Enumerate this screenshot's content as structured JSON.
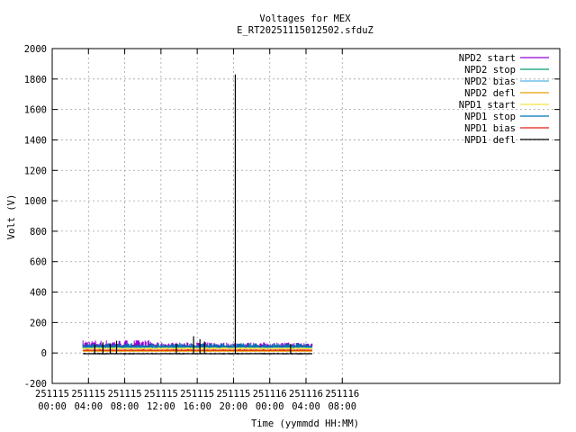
{
  "chart_data": {
    "type": "line",
    "title": "Voltages for MEX",
    "subtitle": "E_RT20251115012502.sfduZ",
    "xlabel": "Time (yymmdd HH:MM)",
    "ylabel": "Volt (V)",
    "xlim_hours": [
      0,
      56
    ],
    "ylim": [
      -200,
      2000
    ],
    "grid": true,
    "legend_position": "top-right",
    "x_ticks": [
      {
        "hours": 0,
        "date": "251115",
        "time": "00:00"
      },
      {
        "hours": 4,
        "date": "251115",
        "time": "04:00"
      },
      {
        "hours": 8,
        "date": "251115",
        "time": "08:00"
      },
      {
        "hours": 12,
        "date": "251115",
        "time": "12:00"
      },
      {
        "hours": 16,
        "date": "251115",
        "time": "16:00"
      },
      {
        "hours": 20,
        "date": "251115",
        "time": "20:00"
      },
      {
        "hours": 24,
        "date": "251116",
        "time": "00:00"
      },
      {
        "hours": 28,
        "date": "251116",
        "time": "04:00"
      },
      {
        "hours": 32,
        "date": "251116",
        "time": "08:00"
      }
    ],
    "y_ticks": [
      -200,
      0,
      200,
      400,
      600,
      800,
      1000,
      1200,
      1400,
      1600,
      1800,
      2000
    ],
    "series": [
      {
        "name": "NPD2 start",
        "color": "#9400d3",
        "segments": [
          {
            "from_hours": 3.4,
            "to_hours": 11.0,
            "base": 45,
            "band": [
              40,
              85
            ]
          },
          {
            "from_hours": 11.0,
            "to_hours": 28.7,
            "base": 45,
            "band": [
              40,
              70
            ]
          }
        ]
      },
      {
        "name": "NPD2 stop",
        "color": "#009e73",
        "segments": [
          {
            "from_hours": 3.4,
            "to_hours": 28.7,
            "base": 35,
            "band": [
              30,
              55
            ]
          }
        ]
      },
      {
        "name": "NPD2 bias",
        "color": "#56b4e9",
        "segments": [
          {
            "from_hours": 3.4,
            "to_hours": 28.7,
            "base": 30,
            "band": [
              25,
              50
            ]
          }
        ]
      },
      {
        "name": "NPD2 defl",
        "color": "#e69f00",
        "segments": [
          {
            "from_hours": 3.4,
            "to_hours": 28.7,
            "base": 12,
            "band": [
              8,
              18
            ]
          }
        ]
      },
      {
        "name": "NPD1 start",
        "color": "#f0e442",
        "segments": [
          {
            "from_hours": 3.4,
            "to_hours": 28.7,
            "base": 28,
            "band": [
              25,
              40
            ]
          }
        ]
      },
      {
        "name": "NPD1 stop",
        "color": "#0072b2",
        "segments": [
          {
            "from_hours": 3.4,
            "to_hours": 28.7,
            "base": 40,
            "band": [
              35,
              65
            ]
          }
        ]
      },
      {
        "name": "NPD1 bias",
        "color": "#e51e10",
        "segments": [
          {
            "from_hours": 3.4,
            "to_hours": 28.7,
            "base": 18,
            "band": [
              15,
              25
            ]
          }
        ]
      },
      {
        "name": "NPD1 defl",
        "color": "#000000",
        "segments": [
          {
            "from_hours": 3.4,
            "to_hours": 28.7,
            "base": -5,
            "band": [
              -10,
              0
            ]
          }
        ],
        "spikes": [
          {
            "hours": 4.7,
            "value": 55
          },
          {
            "hours": 5.6,
            "value": 70
          },
          {
            "hours": 6.4,
            "value": 60
          },
          {
            "hours": 7.1,
            "value": 80
          },
          {
            "hours": 13.7,
            "value": 60
          },
          {
            "hours": 15.6,
            "value": 110
          },
          {
            "hours": 16.3,
            "value": 90
          },
          {
            "hours": 16.8,
            "value": 75
          },
          {
            "hours": 20.2,
            "value": 1830
          },
          {
            "hours": 26.3,
            "value": 60
          }
        ]
      }
    ]
  }
}
